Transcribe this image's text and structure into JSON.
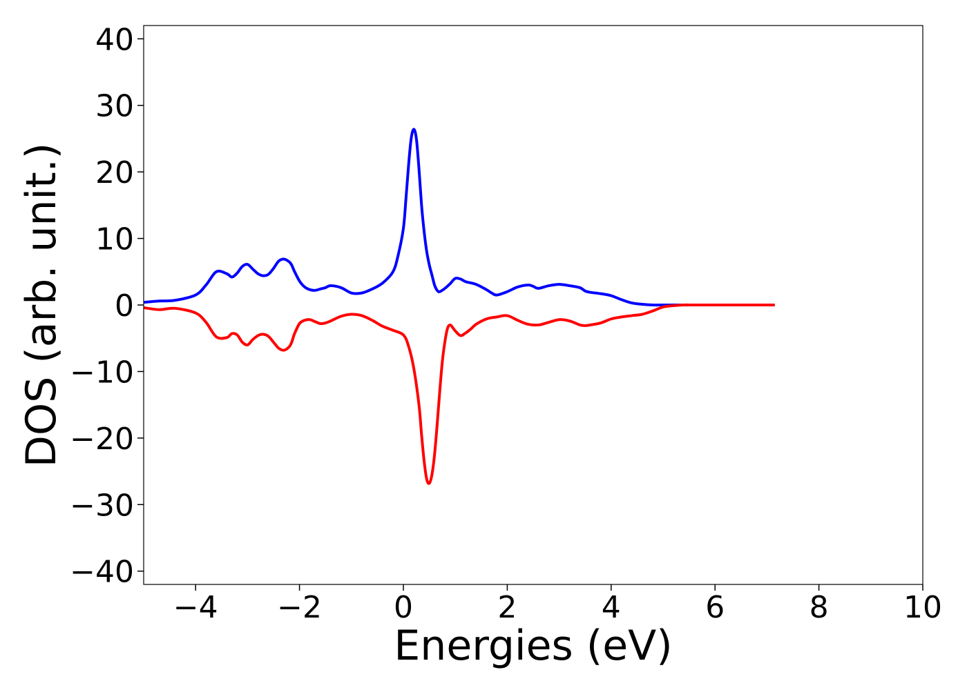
{
  "chart_data": {
    "type": "line",
    "title": "",
    "xlabel": "Energies (eV)",
    "ylabel": "DOS (arb. unit.)",
    "xlim": [
      -5,
      10
    ],
    "ylim": [
      -42,
      42
    ],
    "xticks": [
      -4,
      -2,
      0,
      2,
      4,
      6,
      8,
      10
    ],
    "xtick_labels": [
      "−4",
      "−2",
      "0",
      "2",
      "4",
      "6",
      "8",
      "10"
    ],
    "yticks": [
      40,
      30,
      20,
      10,
      0,
      -10,
      -20,
      -30,
      -40
    ],
    "ytick_labels": [
      "40",
      "30",
      "20",
      "10",
      "0",
      "−10",
      "−20",
      "−30",
      "−40"
    ],
    "grid": false,
    "legend": "none",
    "series": [
      {
        "color": "#0000ff",
        "x": [
          -5.0,
          -4.7,
          -4.4,
          -4.0,
          -3.8,
          -3.6,
          -3.4,
          -3.3,
          -3.2,
          -3.1,
          -3.0,
          -2.9,
          -2.8,
          -2.7,
          -2.6,
          -2.5,
          -2.4,
          -2.3,
          -2.2,
          -2.15,
          -2.1,
          -2.0,
          -1.9,
          -1.8,
          -1.7,
          -1.6,
          -1.5,
          -1.4,
          -1.2,
          -1.0,
          -0.8,
          -0.6,
          -0.4,
          -0.2,
          -0.1,
          0.0,
          0.05,
          0.1,
          0.15,
          0.2,
          0.25,
          0.3,
          0.35,
          0.4,
          0.45,
          0.5,
          0.55,
          0.6,
          0.65,
          0.7,
          0.8,
          0.9,
          1.0,
          1.1,
          1.2,
          1.4,
          1.6,
          1.7,
          1.8,
          2.0,
          2.2,
          2.4,
          2.5,
          2.6,
          2.8,
          3.0,
          3.2,
          3.4,
          3.5,
          3.6,
          3.8,
          4.0,
          4.2,
          4.4,
          4.6,
          4.8,
          5.0,
          5.2,
          5.4,
          5.6,
          6.0,
          6.5,
          7.0,
          7.15
        ],
        "values": [
          0.4,
          0.6,
          0.7,
          1.5,
          3.0,
          5.0,
          4.7,
          4.2,
          4.8,
          5.8,
          6.1,
          5.4,
          4.7,
          4.4,
          4.6,
          5.5,
          6.6,
          6.9,
          6.5,
          6.0,
          5.1,
          3.6,
          2.7,
          2.3,
          2.2,
          2.4,
          2.6,
          2.9,
          2.6,
          1.8,
          1.8,
          2.4,
          3.3,
          5.0,
          7.5,
          11.5,
          16.0,
          21.0,
          25.0,
          26.4,
          25.0,
          20.5,
          15.0,
          11.0,
          8.0,
          6.0,
          4.5,
          3.0,
          2.2,
          2.0,
          2.5,
          3.2,
          4.0,
          3.9,
          3.5,
          3.1,
          2.3,
          1.8,
          1.5,
          2.0,
          2.7,
          3.0,
          2.8,
          2.5,
          2.9,
          3.1,
          2.9,
          2.6,
          2.1,
          1.9,
          1.7,
          1.4,
          0.8,
          0.3,
          0.1,
          0.0,
          0.0,
          0.0,
          0.0,
          0.0,
          0.0,
          0.0,
          0.0,
          0.0
        ]
      },
      {
        "color": "#ff0000",
        "x": [
          -5.0,
          -4.7,
          -4.4,
          -4.0,
          -3.8,
          -3.6,
          -3.4,
          -3.3,
          -3.2,
          -3.1,
          -3.0,
          -2.9,
          -2.8,
          -2.7,
          -2.6,
          -2.5,
          -2.4,
          -2.3,
          -2.2,
          -2.15,
          -2.1,
          -2.0,
          -1.9,
          -1.8,
          -1.7,
          -1.6,
          -1.5,
          -1.4,
          -1.2,
          -1.0,
          -0.8,
          -0.6,
          -0.4,
          -0.2,
          0.0,
          0.1,
          0.2,
          0.3,
          0.35,
          0.4,
          0.45,
          0.5,
          0.55,
          0.6,
          0.65,
          0.7,
          0.75,
          0.8,
          0.85,
          0.9,
          0.95,
          1.0,
          1.1,
          1.2,
          1.3,
          1.4,
          1.6,
          1.8,
          2.0,
          2.2,
          2.4,
          2.6,
          2.8,
          3.0,
          3.2,
          3.4,
          3.5,
          3.6,
          3.8,
          4.0,
          4.2,
          4.4,
          4.6,
          4.8,
          5.0,
          5.2,
          5.4,
          5.6,
          6.0,
          6.5,
          7.0,
          7.15
        ],
        "values": [
          -0.4,
          -0.7,
          -0.5,
          -1.2,
          -2.6,
          -4.8,
          -4.9,
          -4.3,
          -4.5,
          -5.6,
          -6.0,
          -5.2,
          -4.6,
          -4.4,
          -4.7,
          -5.6,
          -6.5,
          -6.8,
          -6.3,
          -5.6,
          -4.4,
          -2.8,
          -2.3,
          -2.2,
          -2.5,
          -2.8,
          -2.7,
          -2.4,
          -1.7,
          -1.4,
          -1.6,
          -2.3,
          -3.2,
          -3.8,
          -4.5,
          -6.2,
          -9.5,
          -15.0,
          -19.5,
          -23.5,
          -26.2,
          -26.8,
          -25.5,
          -22.5,
          -18.0,
          -13.0,
          -8.5,
          -5.5,
          -3.5,
          -3.0,
          -3.4,
          -3.9,
          -4.6,
          -4.2,
          -3.6,
          -2.9,
          -2.1,
          -1.8,
          -1.6,
          -2.3,
          -2.9,
          -3.0,
          -2.6,
          -2.2,
          -2.4,
          -3.0,
          -3.1,
          -3.0,
          -2.7,
          -2.1,
          -1.8,
          -1.6,
          -1.4,
          -0.9,
          -0.3,
          -0.1,
          0.0,
          0.0,
          0.0,
          0.0,
          0.0,
          0.0
        ]
      }
    ]
  }
}
